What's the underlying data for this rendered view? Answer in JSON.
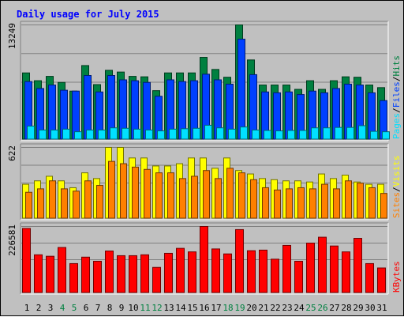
{
  "title": "Daily usage for July 2015",
  "colors": {
    "background": "#c0c0c0",
    "panel": "#c0c0c0",
    "title": "#0000ff",
    "hits": "#008040",
    "files": "#0040ff",
    "pages": "#00e0ff",
    "visits": "#ffff00",
    "sites": "#ff8000",
    "kbytes": "#ff0000",
    "weekend_day": "#008040",
    "weekday": "#000000"
  },
  "chart_data": [
    {
      "type": "bar",
      "name": "hits-files-pages",
      "axis_max_label": "13249",
      "ylim": [
        0,
        13249
      ],
      "ylabel_parts": [
        "Pages",
        "/",
        "Files",
        "/",
        "Hits"
      ],
      "categories": [
        "1",
        "2",
        "3",
        "4",
        "5",
        "6",
        "7",
        "8",
        "9",
        "10",
        "11",
        "12",
        "13",
        "14",
        "15",
        "16",
        "17",
        "18",
        "19",
        "20",
        "21",
        "22",
        "23",
        "24",
        "25",
        "26",
        "27",
        "28",
        "29",
        "30",
        "31"
      ],
      "series": [
        {
          "name": "Hits",
          "color": "#008040",
          "values": [
            7700,
            6800,
            7300,
            6600,
            5600,
            8550,
            6350,
            8000,
            7800,
            7300,
            7250,
            5650,
            7700,
            7700,
            7700,
            9500,
            8100,
            7200,
            13249,
            9200,
            6300,
            6300,
            6300,
            5800,
            6800,
            5800,
            6800,
            7250,
            7200,
            6300,
            6000
          ]
        },
        {
          "name": "Files",
          "color": "#0040ff",
          "values": [
            6700,
            5900,
            6300,
            5700,
            5600,
            7400,
            5500,
            7400,
            6900,
            6800,
            6600,
            5000,
            6900,
            6700,
            6800,
            7550,
            6900,
            6400,
            11600,
            7500,
            5500,
            5400,
            5500,
            5200,
            5600,
            5400,
            5900,
            6400,
            6300,
            5400,
            4500
          ]
        },
        {
          "name": "Pages",
          "color": "#00e0ff",
          "values": [
            1550,
            1100,
            1100,
            1200,
            900,
            1100,
            1100,
            1350,
            1300,
            1200,
            1100,
            1000,
            1200,
            1250,
            1300,
            1650,
            1350,
            1200,
            1450,
            1100,
            1050,
            1000,
            1050,
            1050,
            1350,
            1350,
            1400,
            1400,
            1600,
            950,
            900
          ]
        }
      ]
    },
    {
      "type": "bar",
      "name": "visits-sites",
      "axis_max_label": "622",
      "ylim": [
        0,
        622
      ],
      "ylabel_parts": [
        "Sites",
        "/",
        "Visits"
      ],
      "categories": [
        "1",
        "2",
        "3",
        "4",
        "5",
        "6",
        "7",
        "8",
        "9",
        "10",
        "11",
        "12",
        "13",
        "14",
        "15",
        "16",
        "17",
        "18",
        "19",
        "20",
        "21",
        "22",
        "23",
        "24",
        "25",
        "26",
        "27",
        "28",
        "29",
        "30",
        "31"
      ],
      "series": [
        {
          "name": "Visits",
          "color": "#ffff00",
          "values": [
            300,
            330,
            370,
            330,
            270,
            400,
            350,
            622,
            622,
            530,
            530,
            460,
            460,
            480,
            530,
            530,
            440,
            530,
            420,
            390,
            350,
            340,
            330,
            330,
            320,
            390,
            350,
            380,
            320,
            300,
            300
          ]
        },
        {
          "name": "Sites",
          "color": "#ff8000",
          "values": [
            230,
            260,
            330,
            260,
            240,
            330,
            290,
            500,
            480,
            450,
            430,
            400,
            400,
            350,
            370,
            420,
            350,
            440,
            400,
            340,
            270,
            250,
            260,
            270,
            260,
            300,
            260,
            330,
            310,
            270,
            220
          ]
        }
      ]
    },
    {
      "type": "bar",
      "name": "kbytes",
      "axis_max_label": "226581",
      "ylim": [
        0,
        226581
      ],
      "ylabel_parts": [
        "KBytes"
      ],
      "categories": [
        "1",
        "2",
        "3",
        "4",
        "5",
        "6",
        "7",
        "8",
        "9",
        "10",
        "11",
        "12",
        "13",
        "14",
        "15",
        "16",
        "17",
        "18",
        "19",
        "20",
        "21",
        "22",
        "23",
        "24",
        "25",
        "26",
        "27",
        "28",
        "29",
        "30",
        "31"
      ],
      "series": [
        {
          "name": "KBytes",
          "color": "#ff0000",
          "values": [
            220000,
            130000,
            125000,
            155000,
            100000,
            122000,
            108000,
            143000,
            127000,
            127000,
            130000,
            87000,
            135000,
            152000,
            140000,
            226581,
            150000,
            133000,
            216000,
            144000,
            146000,
            115000,
            162000,
            108000,
            170000,
            190000,
            160000,
            140000,
            186000,
            100000,
            85000
          ]
        }
      ]
    }
  ],
  "x_axis": {
    "labels": [
      "1",
      "2",
      "3",
      "4",
      "5",
      "6",
      "7",
      "8",
      "9",
      "10",
      "11",
      "12",
      "13",
      "14",
      "15",
      "16",
      "17",
      "18",
      "19",
      "20",
      "21",
      "22",
      "23",
      "24",
      "25",
      "26",
      "27",
      "28",
      "29",
      "30",
      "31"
    ],
    "weekend_days": [
      "4",
      "5",
      "11",
      "12",
      "18",
      "19",
      "25",
      "26"
    ]
  }
}
